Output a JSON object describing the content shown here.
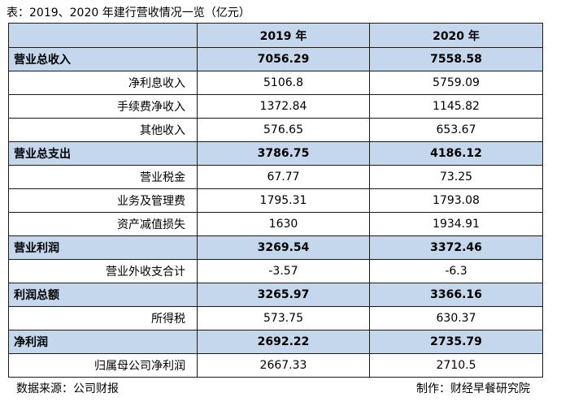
{
  "caption": "表：2019、2020 年建行营收情况一览（亿元）",
  "header": {
    "corner": "",
    "col1": "2019 年",
    "col2": "2020 年"
  },
  "rows": [
    {
      "label": "营业总收入",
      "v2019": "7056.29",
      "v2020": "7558.58"
    },
    {
      "label": "净利息收入",
      "v2019": "5106.8",
      "v2020": "5759.09"
    },
    {
      "label": "手续费净收入",
      "v2019": "1372.84",
      "v2020": "1145.82"
    },
    {
      "label": "其他收入",
      "v2019": "576.65",
      "v2020": "653.67"
    },
    {
      "label": "营业总支出",
      "v2019": "3786.75",
      "v2020": "4186.12"
    },
    {
      "label": "营业税金",
      "v2019": "67.77",
      "v2020": "73.25"
    },
    {
      "label": "业务及管理费",
      "v2019": "1795.31",
      "v2020": "1793.08"
    },
    {
      "label": "资产减值损失",
      "v2019": "1630",
      "v2020": "1934.91"
    },
    {
      "label": "营业利润",
      "v2019": "3269.54",
      "v2020": "3372.46"
    },
    {
      "label": "营业外收支合计",
      "v2019": "-3.57",
      "v2020": "-6.3"
    },
    {
      "label": "利润总额",
      "v2019": "3265.97",
      "v2020": "3366.16"
    },
    {
      "label": "所得税",
      "v2019": "573.75",
      "v2020": "630.37"
    },
    {
      "label": "净利润",
      "v2019": "2692.22",
      "v2020": "2735.79"
    },
    {
      "label": "归属母公司净利润",
      "v2019": "2667.33",
      "v2020": "2710.5"
    }
  ],
  "footer": {
    "source": "数据来源：公司财报",
    "maker": "制作：财经早餐研究院"
  },
  "colors": {
    "header_fill": "#c4d7ec",
    "border": "#1a1a1a"
  }
}
